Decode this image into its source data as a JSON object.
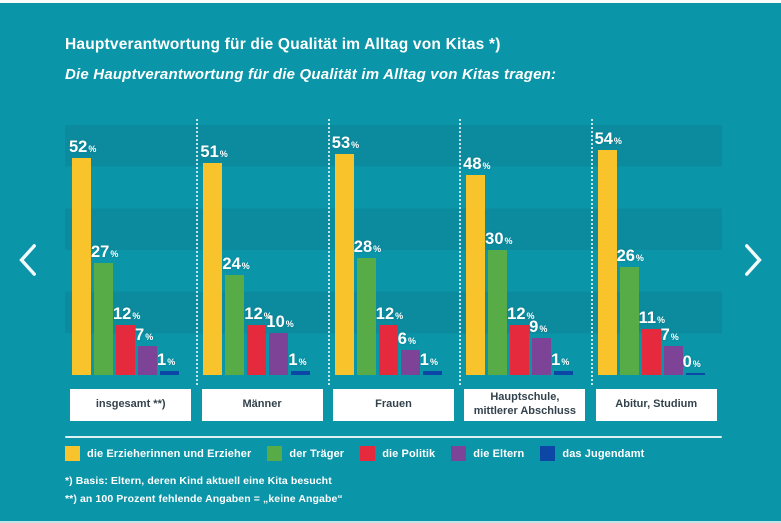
{
  "page": {
    "title": "Hauptverantwortung für die Qualität im Alltag von Kitas *)",
    "subtitle": "Die Hauptverantwortung für die Qualität im Alltag von Kitas tragen:"
  },
  "nav": {
    "prev_icon": "chevron-left",
    "next_icon": "chevron-right"
  },
  "chart_data": {
    "type": "bar",
    "title": "Hauptverantwortung für die Qualität im Alltag von Kitas *)",
    "categories": [
      "insgesamt **)",
      "Männer",
      "Frauen",
      "Hauptschule, mittlerer Abschluss",
      "Abitur, Studium"
    ],
    "series": [
      {
        "name": "die Erzieherinnen und Erzieher",
        "color": "#f9c32b",
        "values": [
          52,
          51,
          53,
          48,
          54
        ]
      },
      {
        "name": "der Träger",
        "color": "#58ac48",
        "values": [
          27,
          24,
          28,
          30,
          26
        ]
      },
      {
        "name": "die Politik",
        "color": "#e62a3e",
        "values": [
          12,
          12,
          12,
          12,
          11
        ]
      },
      {
        "name": "die Eltern",
        "color": "#7c4397",
        "values": [
          7,
          10,
          6,
          9,
          7
        ]
      },
      {
        "name": "das Jugendamt",
        "color": "#0d47a6",
        "values": [
          1,
          1,
          1,
          1,
          0
        ]
      }
    ],
    "unit": "%",
    "ylim": [
      0,
      60
    ],
    "grid": "horizontal bands every 10%",
    "legend_position": "bottom",
    "value_labels": "above bars, white bold"
  },
  "footnotes": {
    "line1": "*) Basis: Eltern, deren Kind aktuell eine Kita besucht",
    "line2": "**) an 100 Prozent fehlende Angaben = „keine Angabe“"
  },
  "colors": {
    "background": "#0a95a8",
    "band": "#0d8b9e",
    "category_box_bg": "#ffffff",
    "category_box_text": "#33424c",
    "text": "#ffffff"
  }
}
